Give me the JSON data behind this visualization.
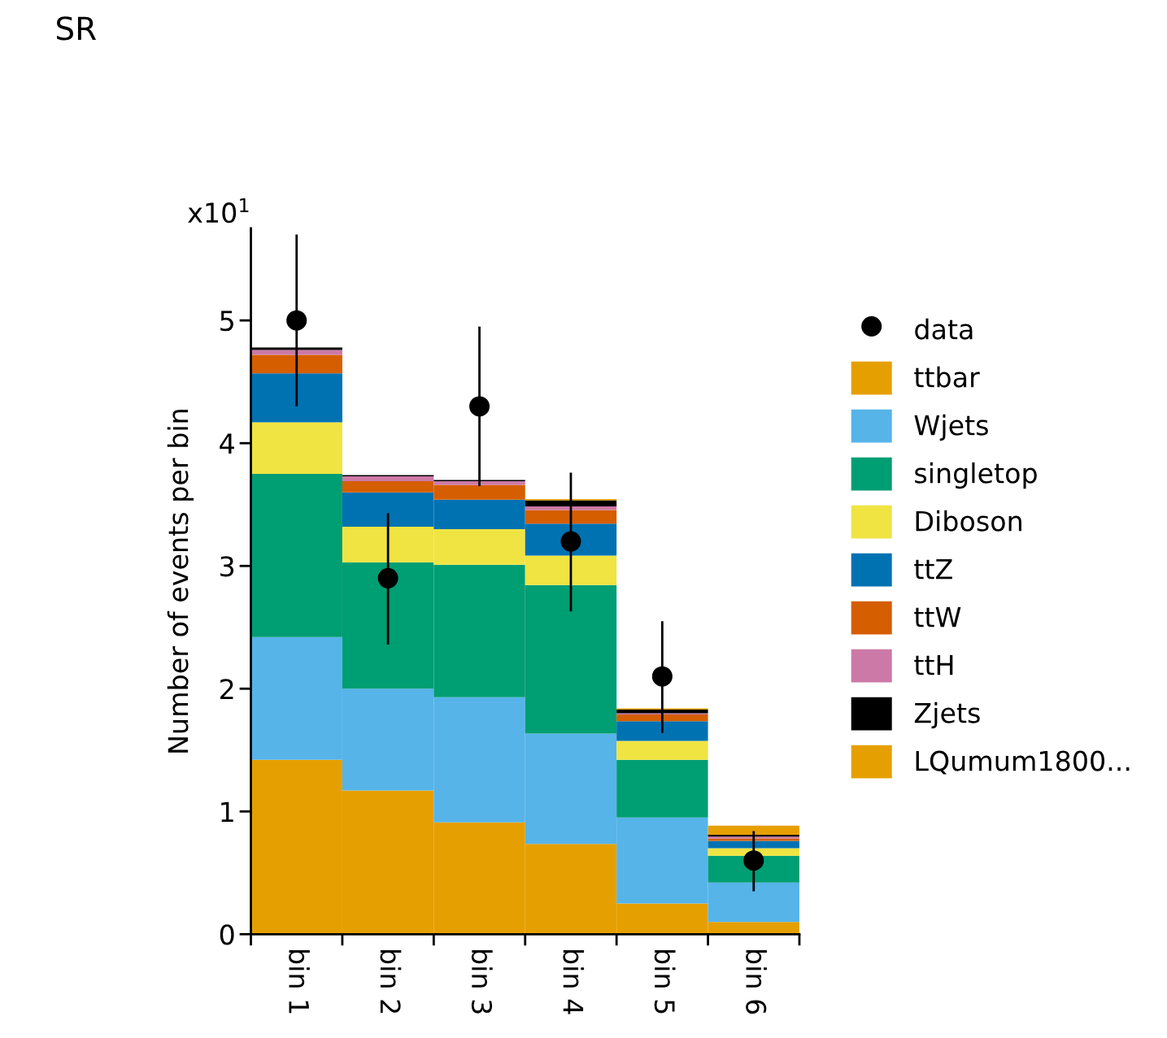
{
  "chart_data": {
    "type": "bar",
    "title": "SR",
    "ylabel": "Number of events per bin",
    "annotations": [
      "x10$^{1}$"
    ],
    "categories": [
      "bin 1",
      "bin 2",
      "bin 3",
      "bin 4",
      "bin 5",
      "bin 6"
    ],
    "stacked": true,
    "ylim": [
      0,
      5.75
    ],
    "yticks": [
      0,
      1,
      2,
      3,
      4,
      5
    ],
    "grid": false,
    "legend": "right",
    "series": [
      {
        "name": "ttbar",
        "color": "#e69f00",
        "values": [
          1.42,
          1.17,
          0.91,
          0.735,
          0.25,
          0.1
        ]
      },
      {
        "name": "Wjets",
        "color": "#56b4e9",
        "values": [
          1.0,
          0.83,
          1.02,
          0.9,
          0.7,
          0.32
        ]
      },
      {
        "name": "singletop",
        "color": "#009e73",
        "values": [
          1.33,
          1.03,
          1.08,
          1.21,
          0.47,
          0.22
        ]
      },
      {
        "name": "Diboson",
        "color": "#f0e442",
        "values": [
          0.42,
          0.29,
          0.29,
          0.24,
          0.155,
          0.06
        ]
      },
      {
        "name": "ttZ",
        "color": "#0072b2",
        "values": [
          0.4,
          0.28,
          0.24,
          0.26,
          0.16,
          0.06
        ]
      },
      {
        "name": "ttW",
        "color": "#d55e00",
        "values": [
          0.15,
          0.09,
          0.12,
          0.11,
          0.055,
          0.02
        ]
      },
      {
        "name": "ttH",
        "color": "#cc79a7",
        "values": [
          0.04,
          0.04,
          0.03,
          0.03,
          0.01,
          0.015
        ]
      },
      {
        "name": "Zjets",
        "color": "#000000",
        "values": [
          0.02,
          0.01,
          0.01,
          0.05,
          0.03,
          0.015
        ]
      },
      {
        "name": "LQumum1800...",
        "color": "#e69f00",
        "values": [
          null,
          null,
          null,
          0.01,
          0.01,
          0.075
        ]
      },
      {
        "name": "data",
        "type": "scatter",
        "color": "#000000",
        "marker": "circle",
        "x": [
          "bin 1",
          "bin 2",
          "bin 3",
          "bin 4",
          "bin 5",
          "bin 6"
        ],
        "values": [
          5.0,
          2.9,
          4.3,
          3.2,
          2.1,
          0.6
        ],
        "errors": [
          [
            4.3,
            5.7
          ],
          [
            2.36,
            3.43
          ],
          [
            3.65,
            4.95
          ],
          [
            2.63,
            3.76
          ],
          [
            1.64,
            2.55
          ],
          [
            0.35,
            0.84
          ]
        ]
      }
    ]
  }
}
